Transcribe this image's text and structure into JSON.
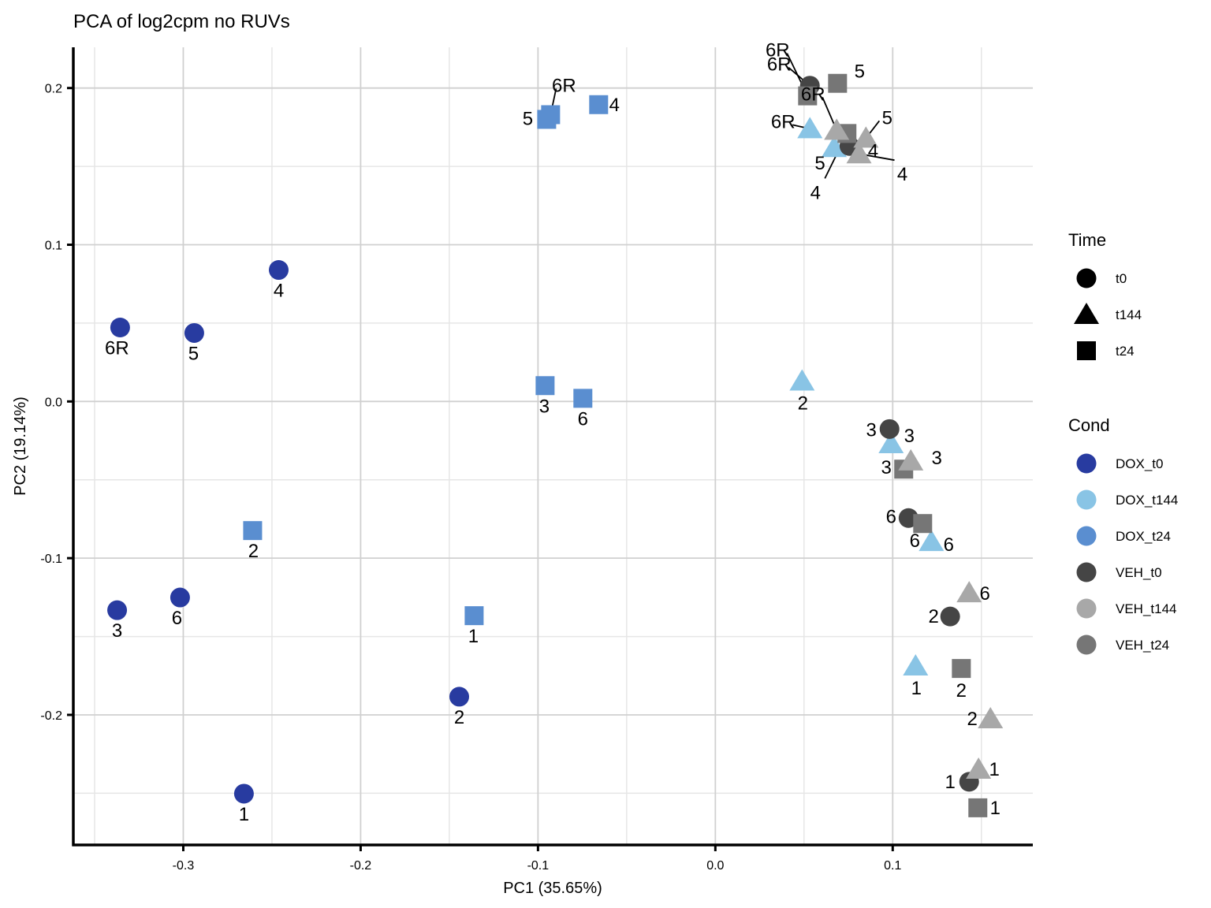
{
  "chart_data": {
    "type": "scatter",
    "title": "PCA of log2cpm no RUVs",
    "xlabel": "PC1 (35.65%)",
    "ylabel": "PC2 (19.14%)",
    "xlim": [
      -0.362,
      0.179
    ],
    "ylim": [
      -0.283,
      0.226
    ],
    "x_ticks": [
      -0.3,
      -0.2,
      -0.1,
      0.0,
      0.1
    ],
    "x_tick_labels": [
      "-0.3",
      "-0.2",
      "-0.1",
      "0.0",
      "0.1"
    ],
    "y_ticks": [
      -0.2,
      -0.1,
      0.0,
      0.1,
      0.2
    ],
    "y_tick_labels": [
      "-0.2",
      "-0.1",
      "0.0",
      "0.1",
      "0.2"
    ],
    "grid": true,
    "legend_placement": "right",
    "legends": {
      "shape": {
        "title": "Time",
        "items": [
          {
            "label": "t0",
            "shape": "circle"
          },
          {
            "label": "t144",
            "shape": "triangle"
          },
          {
            "label": "t24",
            "shape": "square"
          }
        ]
      },
      "color": {
        "title": "Cond",
        "items": [
          {
            "label": "DOX_t0",
            "color": "#283BA0"
          },
          {
            "label": "DOX_t144",
            "color": "#89C4E5"
          },
          {
            "label": "DOX_t24",
            "color": "#5A8ED0"
          },
          {
            "label": "VEH_t0",
            "color": "#454545"
          },
          {
            "label": "VEH_t144",
            "color": "#A8A8A8"
          },
          {
            "label": "VEH_t24",
            "color": "#767676"
          }
        ]
      }
    },
    "points": [
      {
        "cond": "DOX_t0",
        "time": "t0",
        "label": "6R",
        "x": -0.3356,
        "y": 0.0472
      },
      {
        "cond": "DOX_t0",
        "time": "t0",
        "label": "5",
        "x": -0.2938,
        "y": 0.0437
      },
      {
        "cond": "DOX_t0",
        "time": "t0",
        "label": "4",
        "x": -0.2462,
        "y": 0.0839
      },
      {
        "cond": "DOX_t0",
        "time": "t0",
        "label": "3",
        "x": -0.3373,
        "y": -0.1332
      },
      {
        "cond": "DOX_t0",
        "time": "t0",
        "label": "6",
        "x": -0.3018,
        "y": -0.1251
      },
      {
        "cond": "DOX_t0",
        "time": "t0",
        "label": "1",
        "x": -0.2658,
        "y": -0.2503
      },
      {
        "cond": "DOX_t0",
        "time": "t0",
        "label": "2",
        "x": -0.1444,
        "y": -0.1884
      },
      {
        "cond": "DOX_t24",
        "time": "t24",
        "label": "2",
        "x": -0.2609,
        "y": -0.0824
      },
      {
        "cond": "DOX_t24",
        "time": "t24",
        "label": "1",
        "x": -0.136,
        "y": -0.1367
      },
      {
        "cond": "DOX_t24",
        "time": "t24",
        "label": "3",
        "x": -0.096,
        "y": 0.0101
      },
      {
        "cond": "DOX_t24",
        "time": "t24",
        "label": "6",
        "x": -0.0747,
        "y": 0.002
      },
      {
        "cond": "DOX_t24",
        "time": "t24",
        "label": "5",
        "x": -0.0951,
        "y": 0.18
      },
      {
        "cond": "DOX_t24",
        "time": "t24",
        "label": "6R",
        "x": -0.0929,
        "y": 0.183
      },
      {
        "cond": "DOX_t24",
        "time": "t24",
        "label": "4",
        "x": -0.0658,
        "y": 0.1894
      },
      {
        "cond": "DOX_t144",
        "time": "t144",
        "label": "2",
        "x": 0.0489,
        "y": 0.013
      },
      {
        "cond": "DOX_t144",
        "time": "t144",
        "label": "6R",
        "x": 0.0533,
        "y": 0.174
      },
      {
        "cond": "DOX_t144",
        "time": "t144",
        "label": "5",
        "x": 0.067,
        "y": 0.162
      },
      {
        "cond": "DOX_t144",
        "time": "t144",
        "label": "3",
        "x": 0.0991,
        "y": -0.027
      },
      {
        "cond": "DOX_t144",
        "time": "t144",
        "label": "6",
        "x": 0.1218,
        "y": -0.0894
      },
      {
        "cond": "DOX_t144",
        "time": "t144",
        "label": "1",
        "x": 0.1129,
        "y": -0.1688
      },
      {
        "cond": "VEH_t0",
        "time": "t0",
        "label": "6R",
        "x": 0.0533,
        "y": 0.2015
      },
      {
        "cond": "VEH_t0",
        "time": "t0",
        "label": "4",
        "x": 0.0756,
        "y": 0.163
      },
      {
        "cond": "VEH_t0",
        "time": "t0",
        "label": "3",
        "x": 0.0982,
        "y": -0.0176
      },
      {
        "cond": "VEH_t0",
        "time": "t0",
        "label": "6",
        "x": 0.1089,
        "y": -0.0744
      },
      {
        "cond": "VEH_t0",
        "time": "t0",
        "label": "2",
        "x": 0.1324,
        "y": -0.1372
      },
      {
        "cond": "VEH_t0",
        "time": "t0",
        "label": "1",
        "x": 0.1431,
        "y": -0.2427
      },
      {
        "cond": "VEH_t24",
        "time": "t24",
        "label": "6R",
        "x": 0.052,
        "y": 0.195
      },
      {
        "cond": "VEH_t24",
        "time": "t24",
        "label": "5",
        "x": 0.0689,
        "y": 0.203
      },
      {
        "cond": "VEH_t24",
        "time": "t24",
        "label": "4",
        "x": 0.0742,
        "y": 0.171
      },
      {
        "cond": "VEH_t24",
        "time": "t24",
        "label": "3",
        "x": 0.1062,
        "y": -0.0432
      },
      {
        "cond": "VEH_t24",
        "time": "t24",
        "label": "6",
        "x": 0.1169,
        "y": -0.0779
      },
      {
        "cond": "VEH_t24",
        "time": "t24",
        "label": "2",
        "x": 0.1387,
        "y": -0.1704
      },
      {
        "cond": "VEH_t24",
        "time": "t24",
        "label": "1",
        "x": 0.148,
        "y": -0.2593
      },
      {
        "cond": "VEH_t144",
        "time": "t144",
        "label": "6R",
        "x": 0.0684,
        "y": 0.173
      },
      {
        "cond": "VEH_t144",
        "time": "t144",
        "label": "5",
        "x": 0.0849,
        "y": 0.168
      },
      {
        "cond": "VEH_t144",
        "time": "t144",
        "label": "4",
        "x": 0.081,
        "y": 0.158
      },
      {
        "cond": "VEH_t144",
        "time": "t144",
        "label": "3",
        "x": 0.1102,
        "y": -0.038
      },
      {
        "cond": "VEH_t144",
        "time": "t144",
        "label": "6",
        "x": 0.1431,
        "y": -0.1221
      },
      {
        "cond": "VEH_t144",
        "time": "t144",
        "label": "2",
        "x": 0.1551,
        "y": -0.2025
      },
      {
        "cond": "VEH_t144",
        "time": "t144",
        "label": "1",
        "x": 0.1484,
        "y": -0.2347
      }
    ]
  }
}
